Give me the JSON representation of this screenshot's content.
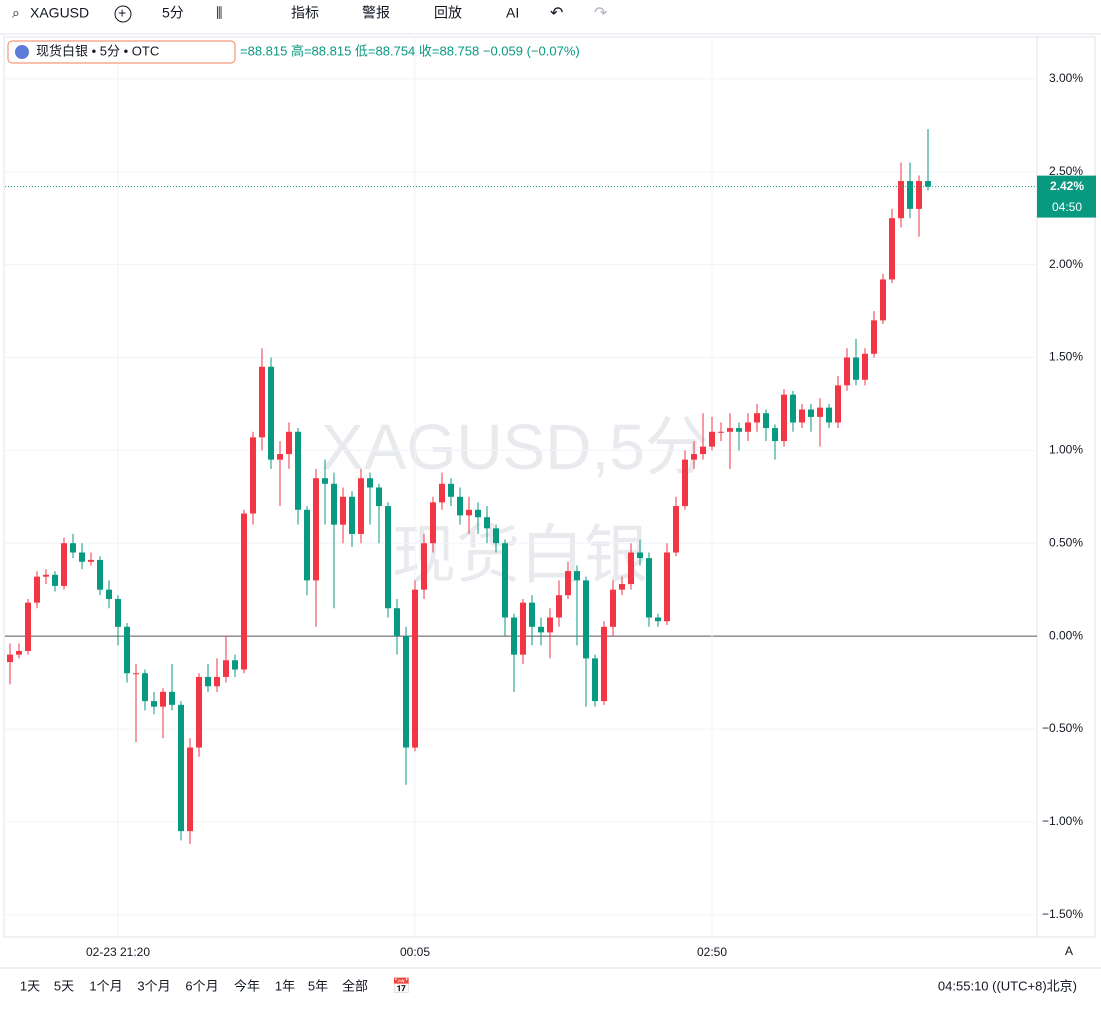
{
  "toolbar": {
    "symbol": "XAGUSD",
    "interval": "5分",
    "items": [
      "指标",
      "警报",
      "回放",
      "AI"
    ]
  },
  "legend": {
    "name": "现货白银 • 5分 • OTC",
    "ohlc": "=88.815  高=88.815  低=88.754  收=88.758  −0.059 (−0.07%)"
  },
  "watermark": [
    "XAGUSD,5分",
    "现货白银"
  ],
  "ranges": [
    "1天",
    "5天",
    "1个月",
    "3个月",
    "6个月",
    "今年",
    "1年",
    "5年",
    "全部"
  ],
  "clock": "04:55:10 ((UTC+8)北京)",
  "scale_mode": "A",
  "chart_data": {
    "type": "candlestick",
    "categories": [
      null,
      null,
      null,
      null,
      null,
      null,
      null,
      null,
      null,
      null,
      null,
      null,
      "02-23 21:20",
      null,
      null,
      null,
      null,
      null,
      null,
      null,
      null,
      null,
      null,
      null,
      null,
      null,
      null,
      null,
      null,
      null,
      null,
      null,
      null,
      null,
      null,
      null,
      null,
      null,
      null,
      null,
      null,
      null,
      null,
      null,
      null,
      "00:05",
      null,
      null,
      null,
      null,
      null,
      null,
      null,
      null,
      null,
      null,
      null,
      null,
      null,
      null,
      null,
      null,
      null,
      null,
      null,
      null,
      null,
      null,
      null,
      null,
      null,
      null,
      null,
      null,
      null,
      null,
      null,
      null,
      "02:50",
      null,
      null,
      null,
      null,
      null,
      null,
      null,
      null,
      null,
      null,
      null,
      null,
      null,
      null,
      null,
      null,
      null,
      null,
      null,
      null,
      null,
      null,
      null,
      null
    ],
    "up_color": "#f23645",
    "down_color": "#089981",
    "open": [
      -0.14,
      -0.1,
      -0.08,
      0.18,
      0.32,
      0.33,
      0.27,
      0.5,
      0.45,
      0.4,
      0.41,
      0.25,
      0.2,
      0.05,
      -0.2,
      -0.2,
      -0.35,
      -0.38,
      -0.3,
      -0.37,
      -1.05,
      -0.6,
      -0.22,
      -0.27,
      -0.22,
      -0.13,
      -0.18,
      0.66,
      1.07,
      1.45,
      0.95,
      0.98,
      1.1,
      0.68,
      0.3,
      0.85,
      0.82,
      0.6,
      0.75,
      0.55,
      0.85,
      0.8,
      0.7,
      0.15,
      0,
      -0.6,
      0.25,
      0.5,
      0.72,
      0.82,
      0.75,
      0.65,
      0.68,
      0.64,
      0.58,
      0.5,
      0.1,
      -0.1,
      0.18,
      0.05,
      0.02,
      0.1,
      0.22,
      0.35,
      0.3,
      -0.12,
      -0.35,
      0.05,
      0.25,
      0.28,
      0.45,
      0.42,
      0.1,
      0.08,
      0.45,
      0.7,
      0.95,
      0.98,
      1.02,
      1.1,
      1.1,
      1.12,
      1.1,
      1.15,
      1.2,
      1.12,
      1.05,
      1.3,
      1.15,
      1.22,
      1.18,
      1.23,
      1.15,
      1.35,
      1.5,
      1.38,
      1.52,
      1.7,
      1.92,
      2.25,
      2.45,
      2.3,
      2.45
    ],
    "high": [
      -0.04,
      -0.04,
      0.2,
      0.35,
      0.36,
      0.35,
      0.53,
      0.55,
      0.5,
      0.45,
      0.43,
      0.3,
      0.22,
      0.07,
      -0.15,
      -0.18,
      -0.3,
      -0.28,
      -0.15,
      -0.35,
      -0.55,
      -0.2,
      -0.15,
      -0.12,
      0,
      -0.1,
      0.68,
      1.1,
      1.55,
      1.5,
      1.05,
      1.15,
      1.12,
      0.7,
      0.9,
      0.95,
      0.88,
      0.8,
      0.78,
      0.9,
      0.88,
      0.82,
      0.72,
      0.2,
      0.05,
      0.3,
      0.55,
      0.75,
      0.88,
      0.85,
      0.8,
      0.75,
      0.72,
      0.7,
      0.6,
      0.52,
      0.12,
      0.2,
      0.22,
      0.1,
      0.15,
      0.3,
      0.4,
      0.38,
      0.32,
      -0.1,
      0.08,
      0.3,
      0.32,
      0.5,
      0.52,
      0.45,
      0.12,
      0.5,
      0.75,
      1.0,
      1.05,
      1.2,
      1.18,
      1.15,
      1.2,
      1.15,
      1.2,
      1.25,
      1.22,
      1.14,
      1.33,
      1.32,
      1.25,
      1.25,
      1.28,
      1.25,
      1.4,
      1.55,
      1.6,
      1.55,
      1.75,
      1.95,
      2.3,
      2.55,
      2.55,
      2.48,
      2.73
    ],
    "low": [
      -0.26,
      -0.12,
      -0.1,
      0.15,
      0.28,
      0.24,
      0.25,
      0.42,
      0.36,
      0.38,
      0.22,
      0.15,
      -0.05,
      -0.25,
      -0.57,
      -0.4,
      -0.42,
      -0.55,
      -0.4,
      -1.1,
      -1.12,
      -0.65,
      -0.3,
      -0.3,
      -0.25,
      -0.22,
      -0.2,
      0.6,
      1.0,
      0.9,
      0.7,
      0.9,
      0.6,
      0.22,
      0.05,
      0.6,
      0.15,
      0.5,
      0.48,
      0.5,
      0.6,
      0.5,
      0.1,
      -0.1,
      -0.8,
      -0.62,
      0.2,
      0.45,
      0.68,
      0.7,
      0.6,
      0.55,
      0.55,
      0.5,
      0.45,
      0,
      -0.3,
      -0.15,
      -0.05,
      -0.05,
      -0.12,
      0.05,
      0.2,
      -0.05,
      -0.38,
      -0.38,
      -0.37,
      0,
      0.22,
      0.25,
      0.38,
      0.05,
      0.05,
      0.06,
      0.43,
      0.68,
      0.9,
      0.95,
      1.0,
      1.05,
      0.9,
      1.0,
      1.05,
      1.1,
      1.05,
      0.95,
      1.02,
      1.1,
      1.12,
      1.1,
      1.02,
      1.12,
      1.12,
      1.32,
      1.35,
      1.35,
      1.5,
      1.68,
      1.9,
      2.2,
      2.25,
      2.15,
      2.4
    ],
    "close": [
      -0.1,
      -0.08,
      0.18,
      0.32,
      0.33,
      0.27,
      0.5,
      0.45,
      0.4,
      0.41,
      0.25,
      0.2,
      0.05,
      -0.2,
      -0.2,
      -0.35,
      -0.38,
      -0.3,
      -0.37,
      -1.05,
      -0.6,
      -0.22,
      -0.27,
      -0.22,
      -0.13,
      -0.18,
      0.66,
      1.07,
      1.45,
      0.95,
      0.98,
      1.1,
      0.68,
      0.3,
      0.85,
      0.82,
      0.6,
      0.75,
      0.55,
      0.85,
      0.8,
      0.7,
      0.15,
      0,
      -0.6,
      0.25,
      0.5,
      0.72,
      0.82,
      0.75,
      0.65,
      0.68,
      0.64,
      0.58,
      0.5,
      0.1,
      -0.1,
      0.18,
      0.05,
      0.02,
      0.1,
      0.22,
      0.35,
      0.3,
      -0.12,
      -0.35,
      0.05,
      0.25,
      0.28,
      0.45,
      0.42,
      0.1,
      0.08,
      0.45,
      0.7,
      0.95,
      0.98,
      1.02,
      1.1,
      1.1,
      1.12,
      1.1,
      1.15,
      1.2,
      1.12,
      1.05,
      1.3,
      1.15,
      1.22,
      1.18,
      1.23,
      1.15,
      1.35,
      1.5,
      1.38,
      1.52,
      1.7,
      1.92,
      2.25,
      2.45,
      2.3,
      2.45,
      2.42
    ],
    "ylim": [
      -1.62,
      3.22
    ],
    "yticks": [
      {
        "value": 3,
        "label": "3.00%"
      },
      {
        "value": 2.5,
        "label": "2.50%"
      },
      {
        "value": 2,
        "label": "2.00%"
      },
      {
        "value": 1.5,
        "label": "1.50%"
      },
      {
        "value": 1,
        "label": "1.00%"
      },
      {
        "value": 0.5,
        "label": "0.50%"
      },
      {
        "value": 0,
        "label": "0.00%"
      },
      {
        "value": -0.5,
        "label": "−0.50%"
      },
      {
        "value": -1,
        "label": "−1.00%"
      },
      {
        "value": -1.5,
        "label": "−1.50%"
      }
    ],
    "last_price": {
      "value": 2.42,
      "label": "2.42%",
      "countdown": "04:50"
    },
    "grid": true
  }
}
